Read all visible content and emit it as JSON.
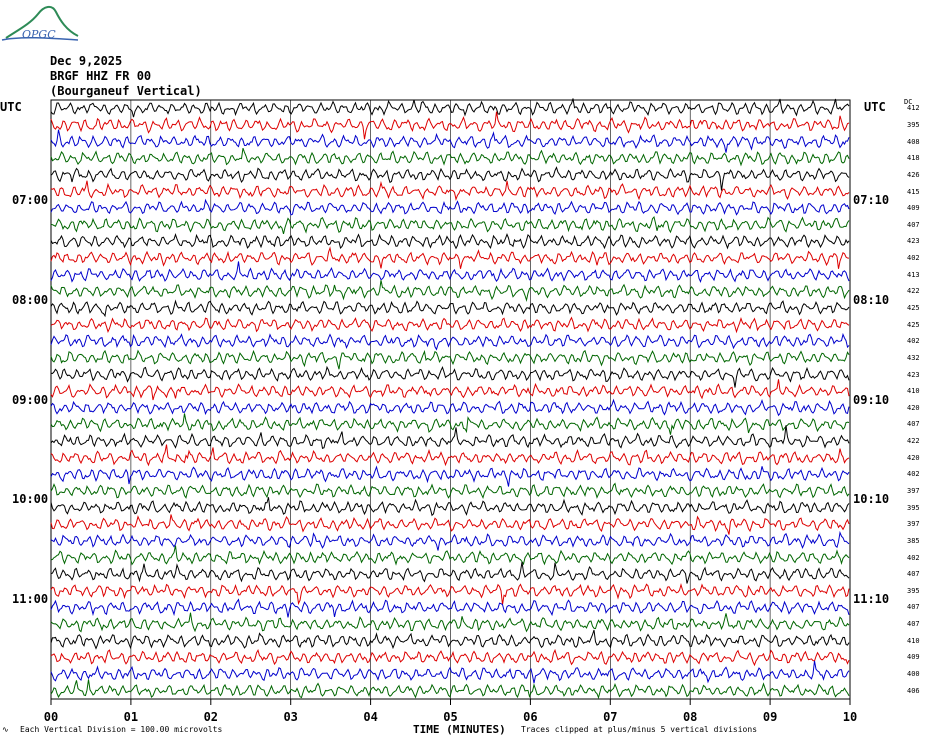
{
  "logo_text": "OPGC",
  "header": {
    "date": "Dec 9,2025",
    "station": "BRGF HHZ FR 00",
    "name": "(Bourganeuf Vertical)"
  },
  "utc_left": "UTC",
  "utc_right": "UTC",
  "dc_label": "DC",
  "footer": {
    "scale": "Each Vertical Division =  100.00 microvolts",
    "xtitle": "TIME (MINUTES)",
    "clip": "Traces clipped at plus/minus 5 vertical divisions"
  },
  "colors": [
    "#000000",
    "#dd0000",
    "#0000cc",
    "#006600"
  ],
  "chart_data": {
    "type": "line",
    "title": "",
    "xlabel": "TIME (MINUTES)",
    "ylabel": "",
    "xlim": [
      0,
      10
    ],
    "x_ticks": [
      "00",
      "01",
      "02",
      "03",
      "04",
      "05",
      "06",
      "07",
      "08",
      "09",
      "10"
    ],
    "grid": true,
    "left_time_labels": [
      "07:00",
      "08:00",
      "09:00",
      "10:00",
      "11:00"
    ],
    "right_time_labels": [
      "07:10",
      "08:10",
      "09:10",
      "10:10",
      "11:10"
    ],
    "trace_count": 36,
    "trace_minutes_per_line": 10,
    "trace_dc_offsets": [
      "412",
      "395",
      "408",
      "418",
      "426",
      "415",
      "409",
      "407",
      "423",
      "402",
      "413",
      "422",
      "425",
      "425",
      "402",
      "432",
      "423",
      "410",
      "420",
      "407",
      "422",
      "420",
      "402",
      "397",
      "395",
      "397",
      "385",
      "402",
      "407",
      "395",
      "407",
      "407",
      "410",
      "409",
      "400",
      "406"
    ]
  }
}
